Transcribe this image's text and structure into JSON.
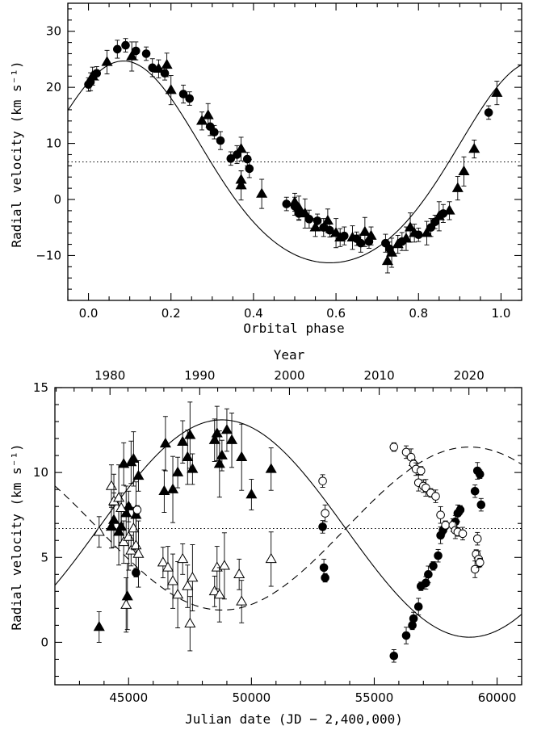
{
  "chart_data": [
    {
      "type": "scatter",
      "xlabel": "Orbital phase",
      "ylabel": "Radial velocity (km s⁻¹)",
      "xlim": [
        -0.05,
        1.05
      ],
      "ylim": [
        -18,
        35
      ],
      "xticks": [
        0.0,
        0.2,
        0.4,
        0.6,
        0.8,
        1.0
      ],
      "xtick_labels": [
        "0.0",
        "0.2",
        "0.4",
        "0.6",
        "0.8",
        "1.0"
      ],
      "yticks": [
        -10,
        0,
        10,
        20,
        30
      ],
      "ytick_labels": [
        "−10",
        "0",
        "10",
        "20",
        "30"
      ],
      "reference_line": {
        "y": 6.7,
        "style": "dotted"
      },
      "model": {
        "gamma": 6.7,
        "K": 18.0,
        "phase_offset": 0.085,
        "skew": 0.25
      },
      "series": [
        {
          "marker": "filled-circle",
          "points": [
            [
              0.0,
              20.5
            ],
            [
              0.005,
              21
            ],
            [
              0.02,
              22.5
            ],
            [
              0.07,
              26.8
            ],
            [
              0.09,
              27.5
            ],
            [
              0.115,
              26.5
            ],
            [
              0.14,
              26
            ],
            [
              0.155,
              23.5
            ],
            [
              0.185,
              22.5
            ],
            [
              0.23,
              18.8
            ],
            [
              0.245,
              18
            ],
            [
              0.295,
              13
            ],
            [
              0.305,
              12
            ],
            [
              0.32,
              10.5
            ],
            [
              0.345,
              7.3
            ],
            [
              0.36,
              8
            ],
            [
              0.385,
              7.2
            ],
            [
              0.39,
              5.5
            ],
            [
              0.48,
              -0.8
            ],
            [
              0.5,
              -1.2
            ],
            [
              0.51,
              -2.5
            ],
            [
              0.535,
              -3.5
            ],
            [
              0.555,
              -3.8
            ],
            [
              0.57,
              -5
            ],
            [
              0.585,
              -5.5
            ],
            [
              0.62,
              -6.5
            ],
            [
              0.65,
              -7
            ],
            [
              0.66,
              -7.8
            ],
            [
              0.68,
              -7.5
            ],
            [
              0.72,
              -7.8
            ],
            [
              0.73,
              -8.8
            ],
            [
              0.76,
              -7.5
            ],
            [
              0.8,
              -6.3
            ],
            [
              0.83,
              -5
            ],
            [
              0.84,
              -4
            ],
            [
              0.86,
              -2.5
            ],
            [
              0.97,
              15.5
            ]
          ]
        },
        {
          "marker": "filled-triangle",
          "points": [
            [
              0.01,
              22
            ],
            [
              0.045,
              24.5
            ],
            [
              0.105,
              25.5
            ],
            [
              0.17,
              23.3
            ],
            [
              0.19,
              24
            ],
            [
              0.2,
              19.5
            ],
            [
              0.275,
              14
            ],
            [
              0.29,
              15
            ],
            [
              0.37,
              2.5
            ],
            [
              0.37,
              3.5
            ],
            [
              0.37,
              9
            ],
            [
              0.42,
              1
            ],
            [
              0.5,
              -0.5
            ],
            [
              0.51,
              -1.5
            ],
            [
              0.525,
              -2.5
            ],
            [
              0.55,
              -5
            ],
            [
              0.58,
              -3.8
            ],
            [
              0.6,
              -6
            ],
            [
              0.61,
              -6.8
            ],
            [
              0.64,
              -6.8
            ],
            [
              0.67,
              -5.8
            ],
            [
              0.685,
              -6.5
            ],
            [
              0.725,
              -11
            ],
            [
              0.735,
              -9.5
            ],
            [
              0.75,
              -8
            ],
            [
              0.77,
              -7
            ],
            [
              0.78,
              -5
            ],
            [
              0.79,
              -6
            ],
            [
              0.82,
              -6
            ],
            [
              0.85,
              -3
            ],
            [
              0.875,
              -2
            ],
            [
              0.895,
              2
            ],
            [
              0.91,
              5
            ],
            [
              0.935,
              9
            ],
            [
              0.99,
              19
            ]
          ]
        }
      ]
    },
    {
      "type": "scatter",
      "xlabel": "Julian date (JD − 2,400,000)",
      "x2label": "Year",
      "ylabel": "Radial velocity (km s⁻¹)",
      "xlim": [
        42000,
        61000
      ],
      "ylim": [
        -2.5,
        15
      ],
      "xticks": [
        45000,
        50000,
        55000,
        60000
      ],
      "xtick_labels": [
        "45000",
        "50000",
        "55000",
        "60000"
      ],
      "year_ticks": [
        1980,
        1990,
        2000,
        2010,
        2020
      ],
      "year_tick_labels": [
        "1980",
        "1990",
        "2000",
        "2010",
        "2020"
      ],
      "year_ref": {
        "year": 1858.87,
        "days_per_year": 365.25
      },
      "yticks": [
        0,
        5,
        10,
        15
      ],
      "ytick_labels": [
        "0",
        "5",
        "10",
        "15"
      ],
      "reference_line": {
        "y": 6.7,
        "style": "dotted"
      },
      "model": {
        "gamma": 6.7,
        "K_primary": 6.4,
        "K_secondary": 4.8,
        "period": 20150,
        "max_jd": 48800
      },
      "series": [
        {
          "marker": "filled-triangle",
          "points": [
            [
              43800,
              0.9
            ],
            [
              44300,
              6.8
            ],
            [
              44400,
              7.2
            ],
            [
              44600,
              6.5
            ],
            [
              44700,
              6.8
            ],
            [
              44800,
              10.5
            ],
            [
              44900,
              7.6
            ],
            [
              44950,
              2.7
            ],
            [
              45000,
              8
            ],
            [
              45100,
              10.6
            ],
            [
              45200,
              10.8
            ],
            [
              45300,
              7.5
            ],
            [
              45400,
              9.8
            ],
            [
              46450,
              8.9
            ],
            [
              46500,
              11.7
            ],
            [
              46800,
              9
            ],
            [
              47000,
              10
            ],
            [
              47200,
              11.8
            ],
            [
              47400,
              10.9
            ],
            [
              47500,
              12.2
            ],
            [
              47600,
              10.2
            ],
            [
              48500,
              11.9
            ],
            [
              48600,
              12.3
            ],
            [
              48700,
              10.5
            ],
            [
              48800,
              11
            ],
            [
              49000,
              12.5
            ],
            [
              49200,
              11.9
            ],
            [
              49600,
              10.9
            ],
            [
              50000,
              8.7
            ],
            [
              50800,
              10.2
            ]
          ]
        },
        {
          "marker": "open-triangle",
          "points": [
            [
              43800,
              6.5
            ],
            [
              44300,
              9.2
            ],
            [
              44400,
              8.3
            ],
            [
              44600,
              8.5
            ],
            [
              44700,
              7.9
            ],
            [
              44800,
              5.9
            ],
            [
              44900,
              2.2
            ],
            [
              45000,
              6.2
            ],
            [
              45100,
              5.4
            ],
            [
              45200,
              6.7
            ],
            [
              45300,
              5.7
            ],
            [
              45400,
              5.2
            ],
            [
              46400,
              4.7
            ],
            [
              46600,
              4.4
            ],
            [
              46800,
              3.6
            ],
            [
              47000,
              2.8
            ],
            [
              47200,
              4.9
            ],
            [
              47400,
              3.3
            ],
            [
              47500,
              1.1
            ],
            [
              47600,
              3.8
            ],
            [
              48500,
              3.0
            ],
            [
              48600,
              4.4
            ],
            [
              48700,
              2.8
            ],
            [
              48900,
              4.5
            ],
            [
              49500,
              4
            ],
            [
              49600,
              2.4
            ],
            [
              50800,
              4.9
            ]
          ]
        },
        {
          "marker": "filled-circle",
          "points": [
            [
              45300,
              4.1
            ],
            [
              52900,
              6.8
            ],
            [
              52950,
              4.4
            ],
            [
              53000,
              3.8
            ],
            [
              55800,
              -0.8
            ],
            [
              56300,
              0.4
            ],
            [
              56550,
              1
            ],
            [
              56600,
              1.4
            ],
            [
              56800,
              2.1
            ],
            [
              56900,
              3.3
            ],
            [
              57100,
              3.5
            ],
            [
              57200,
              4
            ],
            [
              57400,
              4.5
            ],
            [
              57600,
              5.1
            ],
            [
              57700,
              6.3
            ],
            [
              57800,
              6.6
            ],
            [
              58300,
              7.1
            ],
            [
              58400,
              7.6
            ],
            [
              58500,
              7.8
            ],
            [
              59100,
              8.9
            ],
            [
              59200,
              10.1
            ],
            [
              59300,
              9.9
            ],
            [
              59350,
              8.1
            ]
          ]
        },
        {
          "marker": "open-circle",
          "points": [
            [
              45350,
              7.8
            ],
            [
              52900,
              9.5
            ],
            [
              53000,
              7.6
            ],
            [
              55800,
              11.5
            ],
            [
              56300,
              11.2
            ],
            [
              56500,
              10.9
            ],
            [
              56600,
              10.5
            ],
            [
              56700,
              10.2
            ],
            [
              56800,
              9.4
            ],
            [
              56900,
              10.1
            ],
            [
              57000,
              9.2
            ],
            [
              57100,
              9.1
            ],
            [
              57300,
              8.8
            ],
            [
              57500,
              8.6
            ],
            [
              57700,
              7.5
            ],
            [
              57900,
              6.9
            ],
            [
              58200,
              6.9
            ],
            [
              58300,
              6.6
            ],
            [
              58400,
              6.5
            ],
            [
              58600,
              6.4
            ],
            [
              59100,
              4.3
            ],
            [
              59150,
              5.2
            ],
            [
              59200,
              6.1
            ],
            [
              59250,
              4.9
            ],
            [
              59300,
              4.7
            ]
          ]
        }
      ]
    }
  ]
}
